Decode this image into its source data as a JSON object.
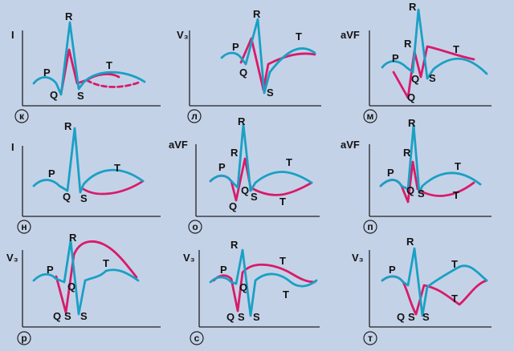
{
  "panels": [
    {
      "letter": "к",
      "lead": "I",
      "labels": [
        "R",
        "P",
        "Q",
        "S",
        "T"
      ]
    },
    {
      "letter": "л",
      "lead": "V₃",
      "labels": [
        "R",
        "P",
        "Q",
        "S",
        "T"
      ]
    },
    {
      "letter": "м",
      "lead": "aVF",
      "labels": [
        "R",
        "R",
        "P",
        "Q",
        "S",
        "Q",
        "T"
      ]
    },
    {
      "letter": "н",
      "lead": "I",
      "labels": [
        "R",
        "P",
        "Q",
        "S",
        "T"
      ]
    },
    {
      "letter": "о",
      "lead": "aVF",
      "labels": [
        "R",
        "R",
        "P",
        "Q",
        "S",
        "Q",
        "T",
        "T"
      ]
    },
    {
      "letter": "п",
      "lead": "aVF",
      "labels": [
        "R",
        "R",
        "P",
        "Q",
        "S",
        "T",
        "T"
      ]
    },
    {
      "letter": "р",
      "lead": "V₃",
      "labels": [
        "R",
        "P",
        "Q",
        "T",
        "Q",
        "S",
        "S"
      ]
    },
    {
      "letter": "с",
      "lead": "V₃",
      "labels": [
        "R",
        "P",
        "Q",
        "T",
        "T",
        "Q",
        "S",
        "S"
      ]
    },
    {
      "letter": "т",
      "lead": "V₃",
      "labels": [
        "R",
        "P",
        "T",
        "T",
        "Q",
        "S",
        "S"
      ]
    }
  ],
  "colors": {
    "background": "#c4d2e8",
    "blue_curve": "#1aa0c4",
    "pink_curve": "#d81b6a"
  }
}
